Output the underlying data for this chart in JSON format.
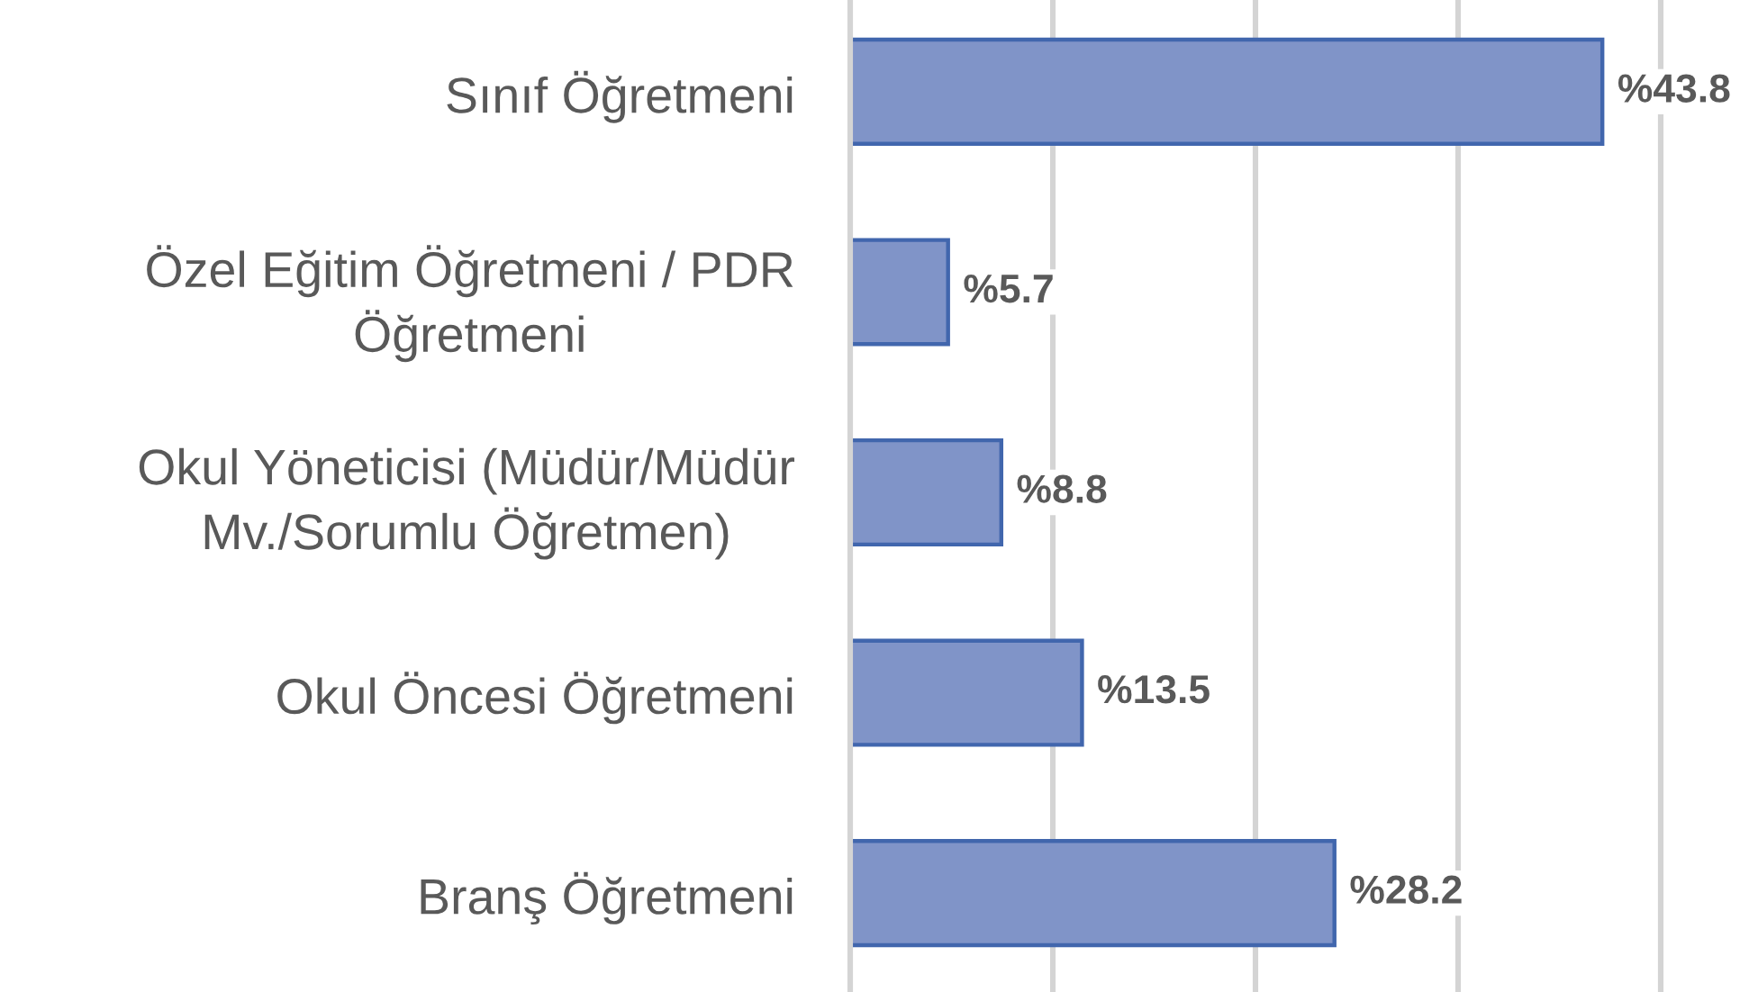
{
  "chart_data": {
    "type": "bar",
    "orientation": "horizontal",
    "categories": [
      "Sınıf Öğretmeni",
      "Özel Eğitim Öğretmeni / PDR\nÖğretmeni",
      "Okul Yöneticisi (Müdür/Müdür\nMv./Sorumlu Öğretmen)",
      "Okul Öncesi Öğretmeni",
      "Branş Öğretmeni"
    ],
    "values": [
      43.8,
      5.7,
      8.8,
      13.5,
      28.2
    ],
    "value_labels": [
      "%43.8",
      "%5.7",
      "%8.8",
      "%13.5",
      "%28.2"
    ],
    "color": "#8094c8",
    "xlim": [
      0,
      47.2
    ],
    "xticks": [
      {
        "value": 0,
        "label": null
      },
      {
        "value": 11.8,
        "label": null
      },
      {
        "value": 23.6,
        "label": null
      },
      {
        "value": 35.4,
        "label": null
      },
      {
        "value": 47.2,
        "label": null
      }
    ],
    "grid": "x",
    "tick_labels": "y"
  }
}
